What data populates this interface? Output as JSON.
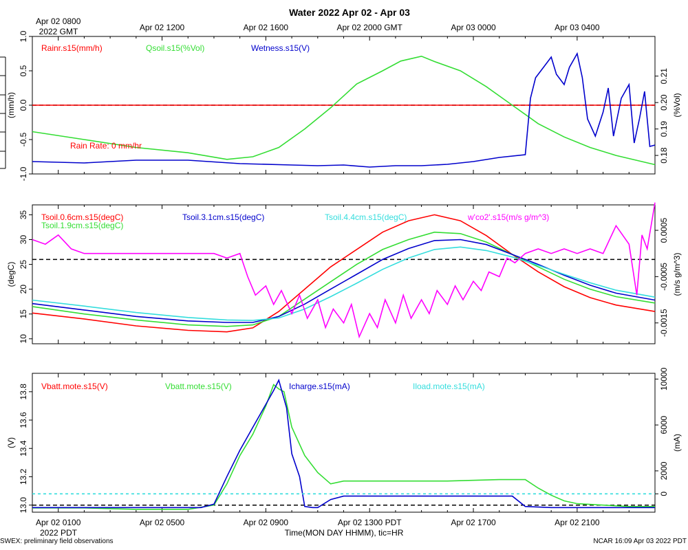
{
  "title": "Water 2022 Apr 02 - Apr 03",
  "footer_left": "SWEX: preliminary field observations",
  "footer_right": "NCAR 16:09 Apr 03 2022 PDT",
  "xlabel": "Time(MON DAY HHMM), tic=HR",
  "top_axis": {
    "year_label": "2022 GMT",
    "ticks": [
      {
        "label": "Apr 02 0800",
        "hour": 0
      },
      {
        "label": "Apr 02 1200",
        "hour": 4
      },
      {
        "label": "Apr 02 1600",
        "hour": 8
      },
      {
        "label": "Apr 02 2000 GMT",
        "hour": 12
      },
      {
        "label": "Apr 03 0000",
        "hour": 16
      },
      {
        "label": "Apr 03 0400",
        "hour": 20
      }
    ]
  },
  "bottom_axis": {
    "year_label": "2022 PDT",
    "ticks": [
      {
        "label": "Apr 02 0100",
        "hour": 1
      },
      {
        "label": "Apr 02 0500",
        "hour": 5
      },
      {
        "label": "Apr 02 0900",
        "hour": 9
      },
      {
        "label": "Apr 02 1300 PDT",
        "hour": 13
      },
      {
        "label": "Apr 02 1700",
        "hour": 17
      },
      {
        "label": "Apr 02 2100",
        "hour": 21
      }
    ]
  },
  "colors": {
    "red": "#ff0000",
    "green": "#33dd33",
    "blue": "#0000cc",
    "cyan": "#33dddd",
    "magenta": "#ff00ff",
    "black": "#000000"
  },
  "chart_data": [
    {
      "id": "water-panel",
      "type": "line",
      "x_range_hours_pdt": [
        0,
        24
      ],
      "left_axis": {
        "label": "(mm/h)",
        "range": [
          -1.0,
          1.0
        ],
        "ticks": [
          -1.0,
          -0.5,
          0.0,
          0.5,
          1.0
        ],
        "tick_labels": [
          "-1.0",
          "-0.5",
          "0.0",
          "0.5",
          "1.0"
        ]
      },
      "right_axis": {
        "label": "(%Vol)",
        "range": [
          0.173,
          0.225
        ],
        "ticks": [
          0.18,
          0.19,
          0.2,
          0.21
        ],
        "tick_labels": [
          "0.18",
          "0.19",
          "0.20",
          "0.21"
        ]
      },
      "annotation": "Rain Rate: 0 mm/hr",
      "zero_line": 0.0,
      "legend": [
        {
          "name": "Rainr.s15(mm/h)",
          "color": "red"
        },
        {
          "name": "Qsoil.s15(%Vol)",
          "color": "green"
        },
        {
          "name": "Wetness.s15(V)",
          "color": "blue"
        }
      ],
      "series": [
        {
          "name": "Rainr.s15(mm/h)",
          "color": "red",
          "axis": "left",
          "x": [
            0,
            24
          ],
          "y": [
            0,
            0
          ]
        },
        {
          "name": "Qsoil.s15(%Vol)",
          "color": "green",
          "axis": "right",
          "x": [
            0,
            2,
            4,
            6,
            7.5,
            8.5,
            9.5,
            10.5,
            11.5,
            12.5,
            13.5,
            14.2,
            15.0,
            15.5,
            16.5,
            17.5,
            18.5,
            19.5,
            20.5,
            21.5,
            22.5,
            24
          ],
          "y": [
            0.189,
            0.186,
            0.183,
            0.181,
            0.1785,
            0.1795,
            0.183,
            0.19,
            0.198,
            0.207,
            0.212,
            0.2157,
            0.2175,
            0.2155,
            0.212,
            0.206,
            0.199,
            0.192,
            0.187,
            0.183,
            0.18,
            0.1765
          ]
        },
        {
          "name": "Wetness.s15(V)",
          "color": "blue",
          "axis": "left",
          "x": [
            0,
            2,
            4,
            6,
            8,
            10,
            11,
            12,
            13,
            14,
            15,
            16,
            17,
            18,
            19,
            19.2,
            19.4,
            19.7,
            20.0,
            20.2,
            20.5,
            20.7,
            21.0,
            21.2,
            21.4,
            21.7,
            22.0,
            22.2,
            22.4,
            22.7,
            23.0,
            23.2,
            23.4,
            23.6,
            23.8,
            24
          ],
          "y": [
            -0.82,
            -0.84,
            -0.8,
            -0.8,
            -0.85,
            -0.87,
            -0.88,
            -0.87,
            -0.9,
            -0.88,
            -0.88,
            -0.86,
            -0.82,
            -0.76,
            -0.72,
            0.1,
            0.4,
            0.55,
            0.7,
            0.45,
            0.3,
            0.55,
            0.75,
            0.4,
            -0.2,
            -0.45,
            -0.1,
            0.25,
            -0.45,
            0.1,
            0.3,
            -0.55,
            -0.2,
            0.2,
            -0.6,
            -0.58
          ]
        }
      ]
    },
    {
      "id": "temperature-panel",
      "type": "line",
      "x_range_hours_pdt": [
        0,
        24
      ],
      "left_axis": {
        "label": "(degC)",
        "range": [
          9,
          37
        ],
        "ticks": [
          10,
          15,
          20,
          25,
          30,
          35
        ],
        "tick_labels": [
          "10",
          "15",
          "20",
          "25",
          "30",
          "35"
        ]
      },
      "right_axis": {
        "label": "(m/s g/m^3)",
        "range": [
          -0.00195,
          0.00105
        ],
        "ticks": [
          -0.0015,
          -0.0005,
          0.0005
        ],
        "tick_labels": [
          "-0.0015",
          "-0.0005",
          "0.0005"
        ]
      },
      "zero_line": 26.0,
      "legend": [
        {
          "name": "Tsoil.0.6cm.s15(degC)",
          "color": "red"
        },
        {
          "name": "Tsoil.1.9cm.s15(degC)",
          "color": "green"
        },
        {
          "name": "Tsoil.3.1cm.s15(degC)",
          "color": "blue"
        },
        {
          "name": "Tsoil.4.4cm.s15(degC)",
          "color": "cyan"
        },
        {
          "name": "w'co2'.s15(m/s g/m^3)",
          "color": "magenta"
        }
      ],
      "series": [
        {
          "name": "Tsoil.0.6cm.s15(degC)",
          "color": "red",
          "axis": "left",
          "x": [
            0,
            2,
            4,
            6,
            7.5,
            8.5,
            9.5,
            10.5,
            11.5,
            12.5,
            13.5,
            14.5,
            15.5,
            16.5,
            17.5,
            18.5,
            19.5,
            20.5,
            21.5,
            22.5,
            24
          ],
          "y": [
            15.2,
            14.0,
            12.6,
            11.7,
            11.4,
            12.2,
            15.5,
            20.0,
            24.5,
            28.0,
            31.5,
            33.8,
            35.0,
            33.8,
            30.8,
            27.0,
            23.5,
            20.5,
            18.3,
            16.8,
            15.5
          ]
        },
        {
          "name": "Tsoil.1.9cm.s15(degC)",
          "color": "green",
          "axis": "left",
          "x": [
            0,
            2,
            4,
            6,
            7.5,
            8.5,
            9.5,
            10.5,
            11.5,
            12.5,
            13.5,
            14.5,
            15.5,
            16.5,
            17.5,
            18.5,
            19.5,
            20.5,
            21.5,
            22.5,
            24
          ],
          "y": [
            16.5,
            15.0,
            13.8,
            12.8,
            12.5,
            12.8,
            14.5,
            18.0,
            21.5,
            25.0,
            28.0,
            30.0,
            31.5,
            31.2,
            29.5,
            27.0,
            24.5,
            22.0,
            20.0,
            18.5,
            17.2
          ]
        },
        {
          "name": "Tsoil.3.1cm.s15(degC)",
          "color": "blue",
          "axis": "left",
          "x": [
            0,
            2,
            4,
            6,
            7.5,
            8.5,
            9.5,
            10.5,
            11.5,
            12.5,
            13.5,
            14.5,
            15.5,
            16.5,
            17.5,
            18.5,
            19.5,
            20.5,
            21.5,
            22.5,
            24
          ],
          "y": [
            17.1,
            15.8,
            14.5,
            13.6,
            13.3,
            13.3,
            14.5,
            17.0,
            20.0,
            23.0,
            26.0,
            28.2,
            29.8,
            30.0,
            29.0,
            27.0,
            25.0,
            22.8,
            20.8,
            19.2,
            17.8
          ]
        },
        {
          "name": "Tsoil.4.4cm.s15(degC)",
          "color": "cyan",
          "axis": "left",
          "x": [
            0,
            2,
            4,
            6,
            7.5,
            8.5,
            9.5,
            10.5,
            11.5,
            12.5,
            13.5,
            14.5,
            15.5,
            16.5,
            17.5,
            18.5,
            19.5,
            20.5,
            21.5,
            22.5,
            24
          ],
          "y": [
            17.8,
            16.6,
            15.3,
            14.3,
            13.8,
            13.7,
            14.2,
            16.0,
            18.5,
            21.2,
            24.0,
            26.3,
            28.0,
            28.5,
            27.8,
            26.5,
            24.8,
            23.0,
            21.3,
            19.8,
            18.4
          ]
        },
        {
          "name": "w'co2'.s15(m/s g/m^3)",
          "color": "magenta",
          "axis": "right",
          "x": [
            0,
            0.5,
            1.0,
            1.5,
            2,
            3,
            4,
            5,
            6,
            7,
            7.5,
            8,
            8.3,
            8.6,
            9.0,
            9.3,
            9.6,
            10.0,
            10.3,
            10.6,
            11.0,
            11.3,
            11.6,
            12.0,
            12.3,
            12.6,
            13.0,
            13.3,
            13.6,
            14.0,
            14.3,
            14.6,
            15.0,
            15.3,
            15.6,
            16.0,
            16.3,
            16.6,
            17.0,
            17.3,
            17.6,
            18.0,
            18.3,
            18.6,
            19.0,
            19.5,
            20.0,
            20.5,
            21.0,
            21.5,
            22.0,
            22.5,
            23.0,
            23.3,
            23.5,
            23.7,
            24
          ],
          "y": [
            0.0003,
            0.0002,
            0.0004,
            0.0001,
            0.0,
            0.0,
            0.0,
            0.0,
            0.0,
            0.0,
            -0.0001,
            0.0,
            -0.0005,
            -0.0009,
            -0.0007,
            -0.0011,
            -0.0008,
            -0.0013,
            -0.0009,
            -0.0014,
            -0.001,
            -0.0016,
            -0.0012,
            -0.0015,
            -0.0011,
            -0.0018,
            -0.0013,
            -0.0016,
            -0.001,
            -0.0015,
            -0.0009,
            -0.0014,
            -0.001,
            -0.0013,
            -0.0008,
            -0.0011,
            -0.0007,
            -0.001,
            -0.0006,
            -0.0008,
            -0.0004,
            -0.0005,
            -0.0001,
            -0.0002,
            0.0,
            0.0001,
            0.0,
            0.0001,
            0.0,
            0.0001,
            0.0,
            0.0006,
            0.0002,
            -0.0009,
            0.0004,
            0.0001,
            0.0011
          ]
        }
      ]
    },
    {
      "id": "battery-panel",
      "type": "line",
      "x_range_hours_pdt": [
        0,
        24
      ],
      "left_axis": {
        "label": "(V)",
        "range": [
          12.95,
          13.93
        ],
        "ticks": [
          13.0,
          13.2,
          13.4,
          13.6,
          13.8
        ],
        "tick_labels": [
          "13.0",
          "13.2",
          "13.4",
          "13.6",
          "13.8"
        ]
      },
      "right_axis": {
        "label": "(mA)",
        "range": [
          -1600,
          10500
        ],
        "ticks": [
          0,
          2000,
          6000,
          10000
        ],
        "tick_labels": [
          "0",
          "2000",
          "6000",
          "10000"
        ]
      },
      "zero_line": 13.0,
      "legend": [
        {
          "name": "Vbatt.mote.s15(V)",
          "color": "red"
        },
        {
          "name": "Vbatt.mote.s15(V)",
          "color": "green"
        },
        {
          "name": "Icharge.s15(mA)",
          "color": "blue"
        },
        {
          "name": "Iload.mote.s15(mA)",
          "color": "cyan"
        }
      ],
      "series": [
        {
          "name": "Vbatt.mote.s15(V)",
          "color": "green",
          "axis": "left",
          "x": [
            0,
            2,
            4,
            6,
            7.0,
            7.5,
            8.0,
            8.5,
            9.0,
            9.3,
            9.5,
            9.7,
            10.0,
            10.5,
            11.0,
            11.5,
            12.0,
            14,
            16,
            18,
            19,
            19.5,
            20,
            20.5,
            21,
            22,
            23,
            24
          ],
          "y": [
            12.98,
            12.98,
            12.97,
            12.97,
            13.0,
            13.15,
            13.35,
            13.5,
            13.7,
            13.85,
            13.82,
            13.8,
            13.55,
            13.35,
            13.23,
            13.15,
            13.17,
            13.17,
            13.17,
            13.18,
            13.18,
            13.12,
            13.07,
            13.03,
            13.01,
            13.0,
            12.99,
            12.99
          ]
        },
        {
          "name": "Icharge.s15(mA)",
          "color": "blue",
          "axis": "right",
          "x": [
            0,
            2,
            4,
            6,
            6.5,
            7.0,
            7.5,
            8.0,
            8.5,
            9.0,
            9.3,
            9.5,
            9.8,
            10.0,
            10.3,
            10.5,
            10.8,
            11.0,
            11.5,
            12,
            14,
            16,
            18,
            18.5,
            19,
            20,
            22,
            24
          ],
          "y": [
            -1200,
            -1200,
            -1200,
            -1200,
            -1200,
            -900,
            1500,
            3800,
            5800,
            7800,
            9000,
            9900,
            7500,
            3500,
            1500,
            -1100,
            -1200,
            -1200,
            -500,
            -200,
            -200,
            -200,
            -200,
            -200,
            -1100,
            -1200,
            -1200,
            -1200
          ]
        },
        {
          "name": "Iload.mote.s15(mA)",
          "color": "cyan",
          "axis": "right",
          "x": [
            0,
            24
          ],
          "y": [
            0,
            0
          ]
        },
        {
          "name": "Vbatt.mote.s15(V)",
          "color": "red",
          "axis": "left",
          "x": [],
          "y": []
        }
      ]
    }
  ]
}
